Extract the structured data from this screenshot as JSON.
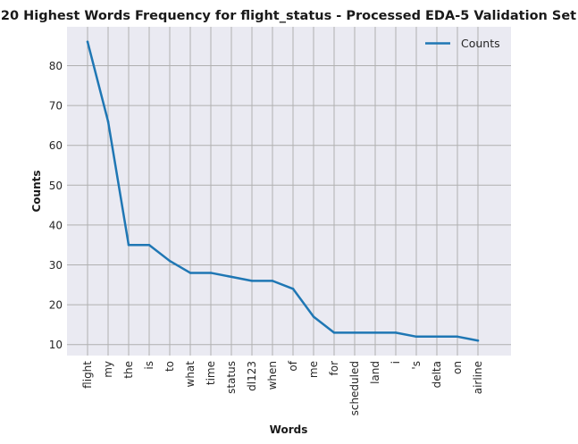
{
  "chart_data": {
    "type": "line",
    "title": "20 Highest Words Frequency for flight_status - Processed EDA-5 Validation Set",
    "xlabel": "Words",
    "ylabel": "Counts",
    "categories": [
      "flight",
      "my",
      "the",
      "is",
      "to",
      "what",
      "time",
      "status",
      "dl123",
      "when",
      "of",
      "me",
      "for",
      "scheduled",
      "land",
      "i",
      "'s",
      "delta",
      "on",
      "airline"
    ],
    "series": [
      {
        "name": "Counts",
        "values": [
          86,
          66,
          35,
          35,
          31,
          28,
          28,
          27,
          26,
          26,
          24,
          17,
          13,
          13,
          13,
          13,
          12,
          12,
          12,
          11
        ]
      }
    ],
    "ylim": [
      7.25,
      89.75
    ],
    "yticks": [
      10,
      20,
      30,
      40,
      50,
      60,
      70,
      80
    ],
    "grid": true,
    "legend": "top-right",
    "colors": {
      "line": "#1f77b4",
      "background": "#eaeaf2",
      "grid": "#b0b0b0"
    }
  }
}
